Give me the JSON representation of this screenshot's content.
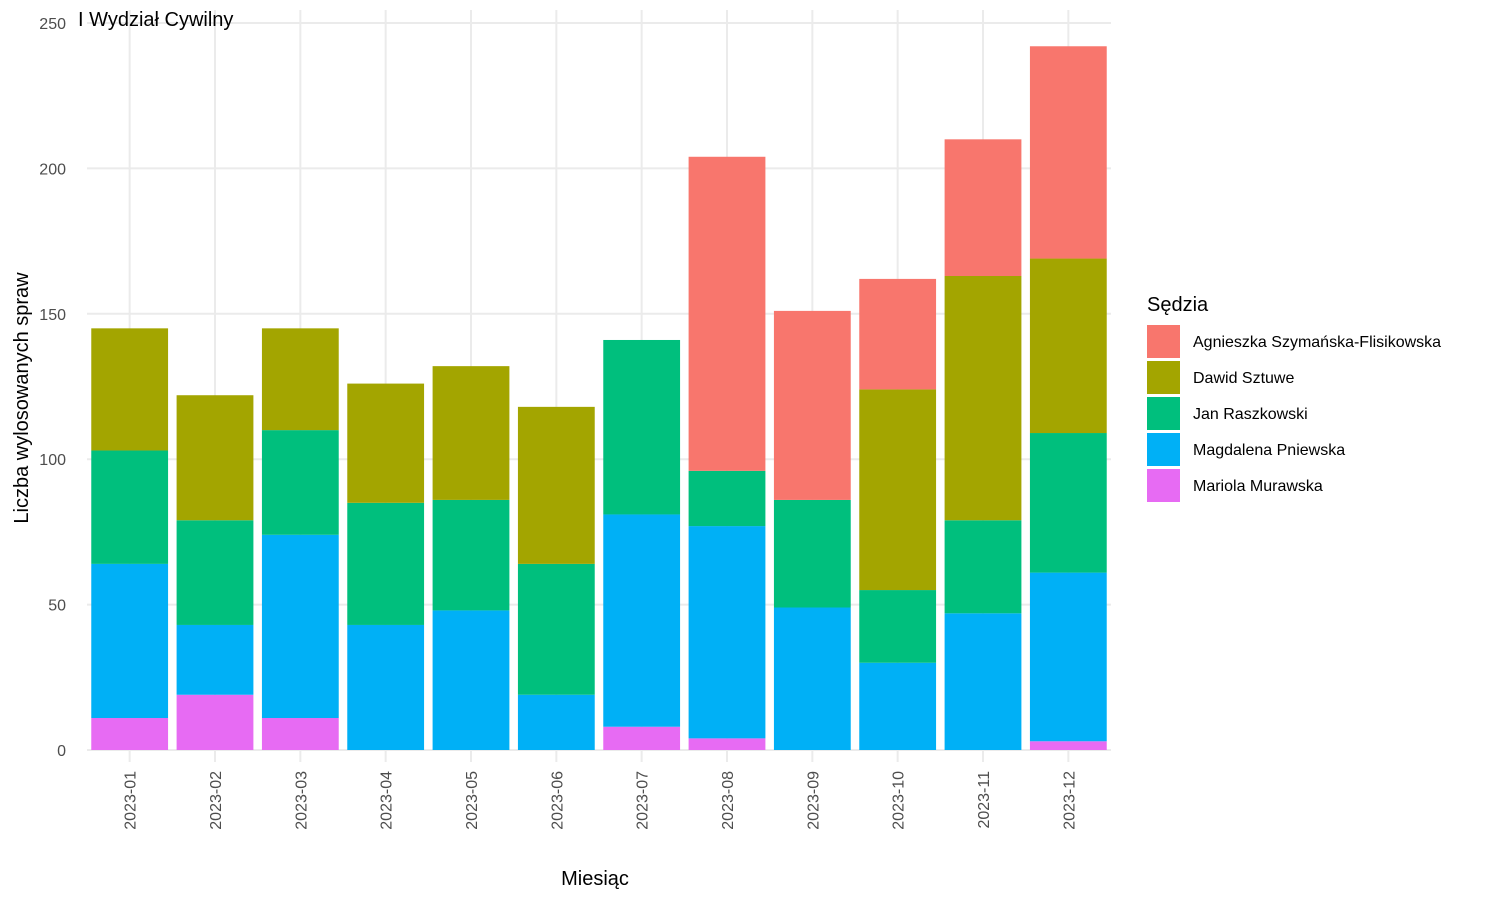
{
  "chart_data": {
    "type": "bar",
    "stacked": true,
    "title": "I Wydział Cywilny",
    "xlabel": "Miesiąc",
    "ylabel": "Liczba wylosowanych spraw",
    "ylim": [
      0,
      250
    ],
    "yticks": [
      "0",
      "50",
      "100",
      "150",
      "200",
      "250"
    ],
    "grid": true,
    "legend_position": "right",
    "legend_title": "Sędzia",
    "categories": [
      "2023-01",
      "2023-02",
      "2023-03",
      "2023-04",
      "2023-05",
      "2023-06",
      "2023-07",
      "2023-08",
      "2023-09",
      "2023-10",
      "2023-11",
      "2023-12"
    ],
    "series": [
      {
        "name": "Mariola Murawska",
        "color": "#E76BF3",
        "values": [
          11,
          19,
          11,
          0,
          0,
          0,
          8,
          4,
          0,
          0,
          0,
          3
        ]
      },
      {
        "name": "Magdalena Pniewska",
        "color": "#00B0F6",
        "values": [
          53,
          24,
          63,
          43,
          48,
          19,
          73,
          73,
          49,
          30,
          47,
          58
        ]
      },
      {
        "name": "Jan Raszkowski",
        "color": "#00BF7D",
        "values": [
          39,
          36,
          36,
          42,
          38,
          45,
          60,
          19,
          37,
          25,
          32,
          48
        ]
      },
      {
        "name": "Dawid Sztuwe",
        "color": "#A3A500",
        "values": [
          42,
          43,
          35,
          41,
          46,
          54,
          0,
          0,
          0,
          69,
          84,
          60
        ]
      },
      {
        "name": "Agnieszka Szymańska-Flisikowska",
        "color": "#F8766D",
        "values": [
          0,
          0,
          0,
          0,
          0,
          0,
          0,
          108,
          65,
          38,
          47,
          73
        ]
      }
    ],
    "legend_order": [
      "Agnieszka Szymańska-Flisikowska",
      "Dawid Sztuwe",
      "Jan Raszkowski",
      "Magdalena Pniewska",
      "Mariola Murawska"
    ]
  }
}
